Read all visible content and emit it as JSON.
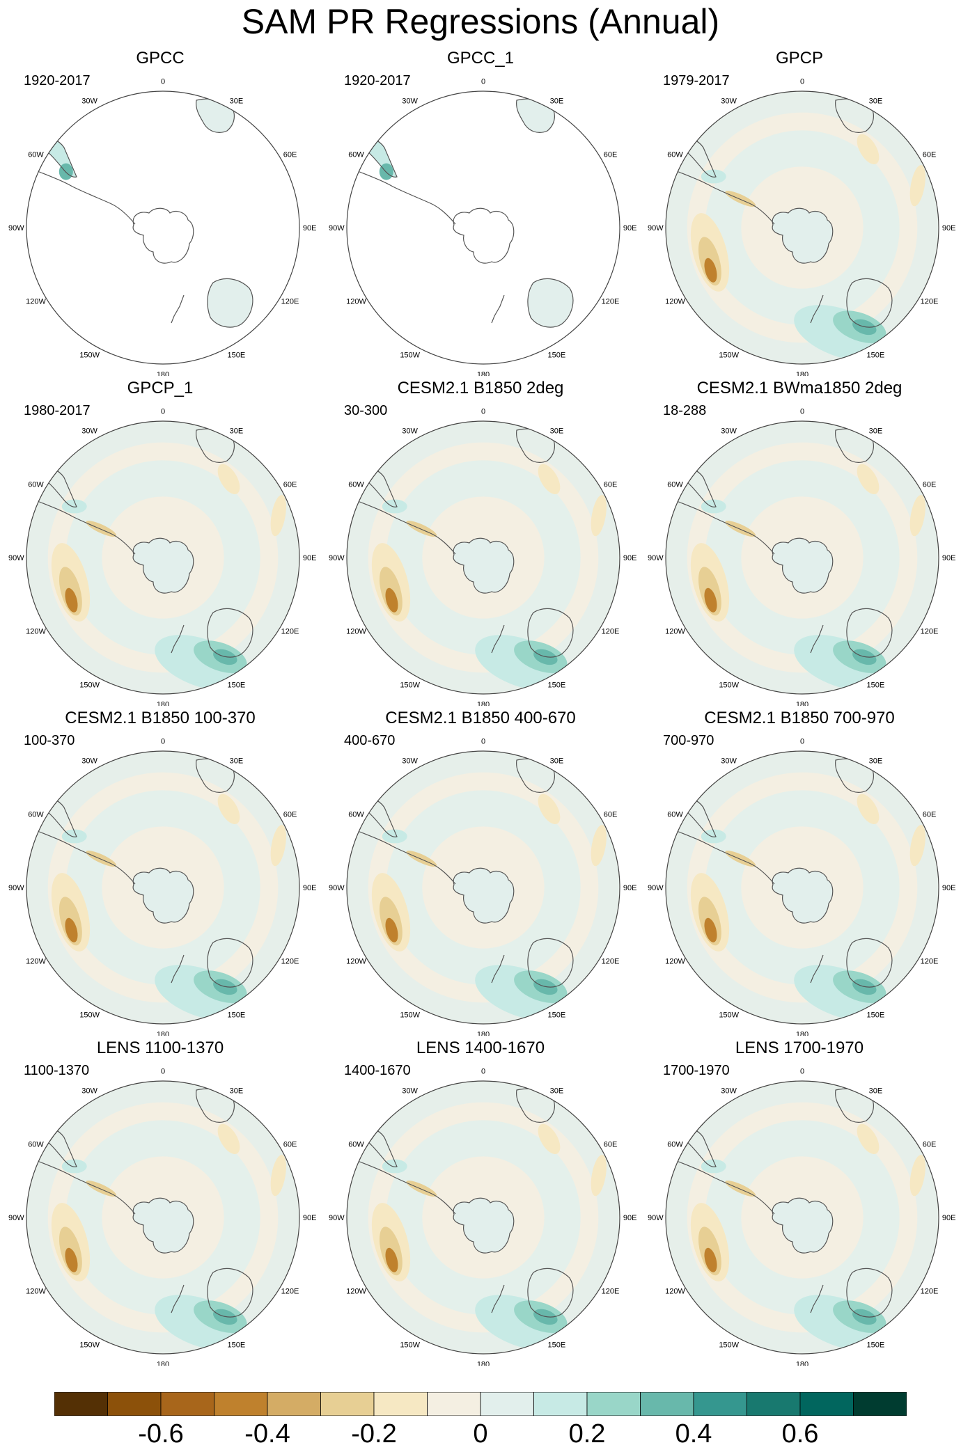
{
  "title": "SAM PR Regressions (Annual)",
  "lon_labels": [
    "0",
    "30E",
    "60E",
    "90E",
    "120E",
    "150E",
    "180",
    "150W",
    "120W",
    "90W",
    "60W",
    "30W"
  ],
  "panels": [
    {
      "title": "GPCC",
      "period": "1920-2017",
      "coverage": "land"
    },
    {
      "title": "GPCC_1",
      "period": "1920-2017",
      "coverage": "land"
    },
    {
      "title": "GPCP",
      "period": "1979-2017",
      "coverage": "global"
    },
    {
      "title": "GPCP_1",
      "period": "1980-2017",
      "coverage": "global"
    },
    {
      "title": "CESM2.1 B1850 2deg",
      "period": "30-300",
      "coverage": "global"
    },
    {
      "title": "CESM2.1 BWma1850 2deg",
      "period": "18-288",
      "coverage": "global"
    },
    {
      "title": "CESM2.1 B1850 100-370",
      "period": "100-370",
      "coverage": "global"
    },
    {
      "title": "CESM2.1 B1850 400-670",
      "period": "400-670",
      "coverage": "global"
    },
    {
      "title": "CESM2.1 B1850 700-970",
      "period": "700-970",
      "coverage": "global"
    },
    {
      "title": "LENS 1100-1370",
      "period": "1100-1370",
      "coverage": "global"
    },
    {
      "title": "LENS 1400-1670",
      "period": "1400-1670",
      "coverage": "global"
    },
    {
      "title": "LENS 1700-1970",
      "period": "1700-1970",
      "coverage": "global"
    }
  ],
  "colorbar": {
    "colors": [
      "#543005",
      "#8c510a",
      "#a8661b",
      "#bf812d",
      "#d4ac65",
      "#e7cf94",
      "#f6e8c3",
      "#f4efe2",
      "#e2efec",
      "#c7eae5",
      "#99d6c8",
      "#68b8ab",
      "#35978f",
      "#18796f",
      "#01665e",
      "#003c30"
    ],
    "labels": [
      "-0.6",
      "-0.4",
      "-0.2",
      "0",
      "0.2",
      "0.4",
      "0.6"
    ],
    "label_values": [
      -0.6,
      -0.4,
      -0.2,
      0,
      0.2,
      0.4,
      0.6
    ],
    "range": [
      -0.8,
      0.8
    ]
  }
}
